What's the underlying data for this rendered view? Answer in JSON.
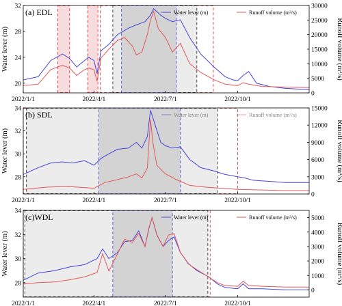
{
  "chart_data": [
    {
      "type": "line",
      "label": "(a) EDL",
      "ylabel": "Water lever (m)",
      "y2label": "Runoff volume (m³/s)",
      "xlim": [
        "2022-01-01",
        "2022-12-31"
      ],
      "xticks": [
        "2022/1/1",
        "2022/4/1",
        "2022/7/1",
        "2022/10/1"
      ],
      "ylim": [
        18.5,
        32
      ],
      "yticks": [
        20,
        24,
        28,
        32
      ],
      "y2lim": [
        0,
        30000
      ],
      "y2ticks": [
        0,
        5000,
        10000,
        15000,
        20000,
        25000,
        30000
      ],
      "legend_faded": false,
      "series": [
        {
          "name": "Water lever (m)",
          "axis": "left",
          "color": "#4444dd",
          "x": [
            "2022-01-01",
            "2022-01-20",
            "2022-02-05",
            "2022-02-20",
            "2022-03-01",
            "2022-03-10",
            "2022-03-20",
            "2022-03-25",
            "2022-04-01",
            "2022-04-05",
            "2022-04-10",
            "2022-04-20",
            "2022-05-01",
            "2022-05-15",
            "2022-05-25",
            "2022-06-05",
            "2022-06-12",
            "2022-06-16",
            "2022-06-25",
            "2022-07-01",
            "2022-07-10",
            "2022-07-20",
            "2022-08-01",
            "2022-08-15",
            "2022-09-01",
            "2022-09-15",
            "2022-09-25",
            "2022-10-01",
            "2022-10-08",
            "2022-10-15",
            "2022-10-25",
            "2022-11-10",
            "2022-12-01",
            "2022-12-31"
          ],
          "y": [
            20.5,
            21.0,
            23.5,
            24.5,
            23.8,
            22.5,
            23.5,
            24.0,
            23.5,
            21.5,
            25.0,
            26.0,
            27.5,
            28.5,
            29.0,
            29.5,
            30.5,
            31.5,
            30.5,
            30.0,
            29.5,
            29.8,
            27.0,
            24.5,
            22.5,
            21.0,
            20.5,
            20.4,
            21.2,
            21.8,
            20.0,
            19.5,
            19.2,
            19.0
          ]
        },
        {
          "name": "Runoff volume (m³/s)",
          "axis": "right",
          "color": "#e45757",
          "x": [
            "2022-01-01",
            "2022-01-20",
            "2022-02-05",
            "2022-02-20",
            "2022-03-01",
            "2022-03-10",
            "2022-03-20",
            "2022-03-25",
            "2022-04-01",
            "2022-04-05",
            "2022-04-10",
            "2022-04-20",
            "2022-05-01",
            "2022-05-10",
            "2022-05-20",
            "2022-05-25",
            "2022-06-01",
            "2022-06-08",
            "2022-06-12",
            "2022-06-16",
            "2022-06-22",
            "2022-07-01",
            "2022-07-10",
            "2022-07-20",
            "2022-08-01",
            "2022-08-15",
            "2022-09-01",
            "2022-09-15",
            "2022-10-01",
            "2022-10-08",
            "2022-10-15",
            "2022-11-01",
            "2022-12-01",
            "2022-12-31"
          ],
          "y": [
            2500,
            3000,
            8000,
            9500,
            8500,
            6000,
            8000,
            8500,
            8000,
            4000,
            12000,
            15000,
            18000,
            19000,
            16000,
            13000,
            14000,
            20000,
            25000,
            28000,
            22000,
            19000,
            14000,
            17000,
            10000,
            7000,
            4500,
            3000,
            2500,
            3500,
            3000,
            2200,
            2000,
            1800
          ]
        }
      ],
      "shaded": [
        {
          "start": "2022-02-14",
          "end": "2022-03-01",
          "fill": "#f6dcdc",
          "border": "#e74c4c",
          "style": "dashed"
        },
        {
          "start": "2022-03-24",
          "end": "2022-04-06",
          "fill": "#f6dcdc",
          "border": "#e74c4c",
          "style": "dashed"
        },
        {
          "start": "2022-04-09",
          "end": "2022-08-31",
          "fill": "none",
          "border": "#e74c4c",
          "style": "dashed"
        },
        {
          "start": "2022-04-25",
          "end": "2022-08-10",
          "fill": "#ececec",
          "border": "#444444",
          "style": "dashed"
        },
        {
          "start": "2022-05-06",
          "end": "2022-07-15",
          "fill": "#d3d3d3",
          "border": "#6666dd",
          "style": "dashed"
        }
      ]
    },
    {
      "type": "line",
      "label": "(b) SDL",
      "ylabel": "Water lever (m)",
      "y2label": "Runoff volume (m³/s)",
      "xlim": [
        "2022-01-01",
        "2022-12-31"
      ],
      "xticks": [
        "2022/1/1",
        "2022/4/1",
        "2022/7/1",
        "2022/10/1"
      ],
      "ylim": [
        26.5,
        34
      ],
      "yticks": [
        28,
        30,
        32,
        34
      ],
      "y2lim": [
        0,
        15000
      ],
      "y2ticks": [
        0,
        3000,
        6000,
        9000,
        12000,
        15000
      ],
      "legend_faded": true,
      "series": [
        {
          "name": "Water lever (m)",
          "axis": "left",
          "color": "#4444dd",
          "x": [
            "2022-01-01",
            "2022-01-20",
            "2022-02-05",
            "2022-02-20",
            "2022-03-05",
            "2022-03-20",
            "2022-04-01",
            "2022-04-10",
            "2022-04-20",
            "2022-05-01",
            "2022-05-15",
            "2022-05-25",
            "2022-06-01",
            "2022-06-08",
            "2022-06-12",
            "2022-06-18",
            "2022-06-25",
            "2022-07-01",
            "2022-07-10",
            "2022-07-20",
            "2022-08-01",
            "2022-08-15",
            "2022-09-01",
            "2022-09-15",
            "2022-10-01",
            "2022-10-10",
            "2022-10-20",
            "2022-11-10",
            "2022-12-01",
            "2022-12-31"
          ],
          "y": [
            28.2,
            28.8,
            29.2,
            29.3,
            29.2,
            29.4,
            29.0,
            29.6,
            30.0,
            30.4,
            30.5,
            31.0,
            30.5,
            31.5,
            33.8,
            32.5,
            31.0,
            30.7,
            30.5,
            30.6,
            29.5,
            28.8,
            28.5,
            28.2,
            28.0,
            27.9,
            27.7,
            27.6,
            27.5,
            27.5
          ]
        },
        {
          "name": "Runoff volume (m³/s)",
          "axis": "right",
          "color": "#e45757",
          "x": [
            "2022-01-01",
            "2022-02-01",
            "2022-03-01",
            "2022-04-01",
            "2022-04-15",
            "2022-05-01",
            "2022-05-15",
            "2022-05-25",
            "2022-06-01",
            "2022-06-08",
            "2022-06-12",
            "2022-06-15",
            "2022-06-20",
            "2022-07-01",
            "2022-07-15",
            "2022-08-01",
            "2022-08-20",
            "2022-09-10",
            "2022-10-01",
            "2022-11-01",
            "2022-12-01",
            "2022-12-31"
          ],
          "y": [
            800,
            1200,
            1300,
            1000,
            2000,
            2500,
            3000,
            3500,
            2800,
            4500,
            13000,
            9000,
            5000,
            3500,
            2500,
            1500,
            1200,
            1000,
            800,
            700,
            600,
            600
          ]
        }
      ],
      "shaded": [
        {
          "start": "2022-01-01",
          "end": "2022-10-01",
          "fill": "none",
          "border": "#e74c4c",
          "style": "dashed"
        },
        {
          "start": "2022-01-05",
          "end": "2022-09-05",
          "fill": "#ececec",
          "border": "#444444",
          "style": "dashed"
        },
        {
          "start": "2022-04-07",
          "end": "2022-07-20",
          "fill": "#d3d3d3",
          "border": "#6666dd",
          "style": "dashed"
        }
      ]
    },
    {
      "type": "line",
      "label": "(c)WDL",
      "ylabel": "Water lever (m)",
      "y2label": "Runoff volume (m³/s)",
      "xlim": [
        "2022-01-01",
        "2022-12-31"
      ],
      "xticks": [
        "2022/1/1",
        "2022/4/1",
        "2022/7/1",
        "2022/10/1"
      ],
      "ylim": [
        26.8,
        34
      ],
      "yticks": [
        28,
        30,
        32,
        34
      ],
      "y2lim": [
        -500,
        5500
      ],
      "y2ticks": [
        0,
        1000,
        2000,
        3000,
        4000,
        5000
      ],
      "legend_faded": false,
      "series": [
        {
          "name": "Water lever (m)",
          "axis": "left",
          "color": "#4444dd",
          "x": [
            "2022-01-01",
            "2022-01-20",
            "2022-02-10",
            "2022-03-01",
            "2022-03-20",
            "2022-04-05",
            "2022-04-12",
            "2022-04-20",
            "2022-05-01",
            "2022-05-10",
            "2022-05-20",
            "2022-05-28",
            "2022-06-05",
            "2022-06-10",
            "2022-06-14",
            "2022-06-20",
            "2022-06-28",
            "2022-07-05",
            "2022-07-12",
            "2022-07-20",
            "2022-07-30",
            "2022-08-10",
            "2022-08-25",
            "2022-09-05",
            "2022-09-15",
            "2022-10-01",
            "2022-10-08",
            "2022-10-15",
            "2022-11-01",
            "2022-12-01",
            "2022-12-31"
          ],
          "y": [
            28.2,
            28.8,
            29.0,
            29.3,
            29.5,
            30.0,
            30.8,
            30.0,
            30.5,
            31.4,
            31.5,
            32.3,
            31.0,
            32.5,
            33.4,
            32.0,
            31.0,
            31.5,
            31.8,
            30.5,
            29.6,
            29.0,
            28.5,
            27.9,
            27.6,
            27.5,
            27.9,
            27.5,
            27.5,
            27.4,
            27.4
          ]
        },
        {
          "name": "Runoff volume (m³/s)",
          "axis": "right",
          "color": "#e45757",
          "x": [
            "2022-01-01",
            "2022-01-20",
            "2022-02-10",
            "2022-03-01",
            "2022-03-20",
            "2022-04-05",
            "2022-04-12",
            "2022-04-20",
            "2022-05-01",
            "2022-05-10",
            "2022-05-20",
            "2022-05-28",
            "2022-06-05",
            "2022-06-10",
            "2022-06-14",
            "2022-06-20",
            "2022-06-28",
            "2022-07-05",
            "2022-07-12",
            "2022-07-20",
            "2022-07-30",
            "2022-08-10",
            "2022-08-25",
            "2022-09-05",
            "2022-09-15",
            "2022-10-01",
            "2022-10-08",
            "2022-10-15",
            "2022-11-01",
            "2022-12-01",
            "2022-12-31"
          ],
          "y": [
            400,
            500,
            550,
            700,
            900,
            1200,
            2500,
            1300,
            2500,
            3500,
            3300,
            3900,
            3000,
            4300,
            5000,
            3800,
            3000,
            3800,
            3900,
            2600,
            1800,
            1400,
            900,
            500,
            300,
            250,
            600,
            300,
            250,
            200,
            200
          ]
        }
      ],
      "shaded": [
        {
          "start": "2022-01-01",
          "end": "2022-08-27",
          "fill": "none",
          "border": "#e74c4c",
          "style": "dashed"
        },
        {
          "start": "2022-01-03",
          "end": "2022-08-24",
          "fill": "#ececec",
          "border": "#444444",
          "style": "dashed"
        },
        {
          "start": "2022-04-25",
          "end": "2022-07-10",
          "fill": "#d3d3d3",
          "border": "#6666dd",
          "style": "dashed"
        }
      ]
    }
  ]
}
